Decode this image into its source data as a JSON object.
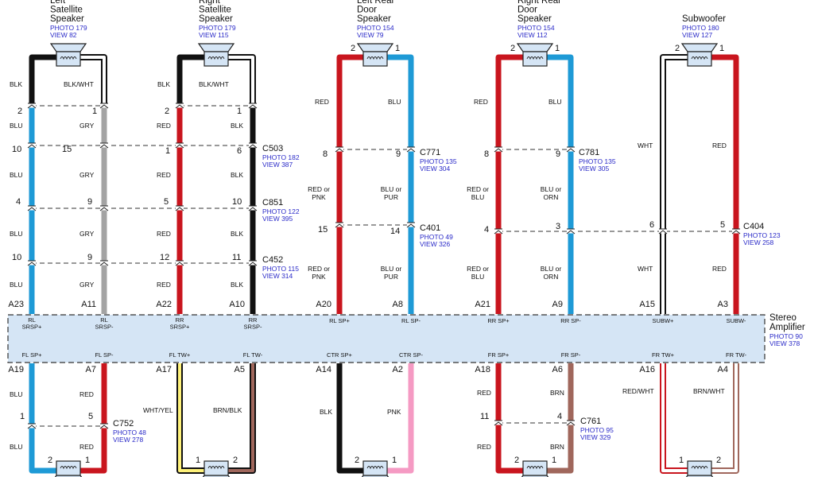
{
  "speakers_top": [
    {
      "name": [
        "Left",
        "Satellite",
        "Speaker"
      ],
      "photo": "PHOTO 179",
      "view": "VIEW 82"
    },
    {
      "name": [
        "Right",
        "Satellite",
        "Speaker"
      ],
      "photo": "PHOTO 179",
      "view": "VIEW 115"
    },
    {
      "name": [
        "Left Rear",
        "Door",
        "Speaker"
      ],
      "photo": "PHOTO 154",
      "view": "VIEW 79",
      "pins": [
        "2",
        "1"
      ]
    },
    {
      "name": [
        "Right Rear",
        "Door",
        "Speaker"
      ],
      "photo": "PHOTO 154",
      "view": "VIEW 112",
      "pins": [
        "2",
        "1"
      ]
    },
    {
      "name": [
        "Subwoofer"
      ],
      "photo": "PHOTO 180",
      "view": "VIEW 127",
      "pins": [
        "2",
        "1"
      ]
    }
  ],
  "speakers_bottom": [
    {
      "pins": [
        "2",
        "1"
      ]
    },
    {
      "pins": [
        "1",
        "2"
      ]
    },
    {
      "pins": [
        "2",
        "1"
      ]
    },
    {
      "pins": [
        "2",
        "1"
      ]
    },
    {
      "pins": [
        "1",
        "2"
      ]
    }
  ],
  "wire_labels": [
    "BLK",
    "BLK/WHT",
    "BLU",
    "GRY",
    "BLU",
    "GRY",
    "BLU",
    "GRY",
    "BLU",
    "GRY",
    "BLK",
    "BLK/WHT",
    "RED",
    "BLK",
    "RED",
    "BLK",
    "RED",
    "BLK",
    "RED",
    "BLK",
    "RED",
    "BLU",
    [
      "RED or",
      "PNK"
    ],
    [
      "BLU or",
      "PUR"
    ],
    [
      "RED or",
      "PNK"
    ],
    [
      "BLU or",
      "PUR"
    ],
    "RED",
    "BLU",
    [
      "RED or",
      "BLU"
    ],
    [
      "BLU or",
      "ORN"
    ],
    [
      "RED or",
      "BLU"
    ],
    [
      "BLU or",
      "ORN"
    ],
    "WHT",
    "RED",
    "WHT",
    "RED",
    "BLU",
    "RED",
    "BLU",
    "RED",
    "WHT/YEL",
    "BRN/BLK",
    "BLK",
    "PNK",
    "RED",
    "BRN",
    "RED",
    "BRN",
    "RED/WHT",
    "BRN/WHT"
  ],
  "pin_numbers": [
    "2",
    "1",
    "10",
    "15",
    "4",
    "9",
    "10",
    "9",
    "2",
    "1",
    "1",
    "6",
    "5",
    "10",
    "12",
    "11",
    "8",
    "9",
    "15",
    "14",
    "8",
    "9",
    "4",
    "3",
    "6",
    "5",
    "1",
    "5",
    "11",
    "4"
  ],
  "connectors": [
    {
      "name": "C503",
      "photo": "PHOTO 182",
      "view": "VIEW 387"
    },
    {
      "name": "C851",
      "photo": "PHOTO 122",
      "view": "VIEW 395"
    },
    {
      "name": "C452",
      "photo": "PHOTO 115",
      "view": "VIEW 314"
    },
    {
      "name": "C771",
      "photo": "PHOTO 135",
      "view": "VIEW 304"
    },
    {
      "name": "C401",
      "photo": "PHOTO 49",
      "view": "VIEW 326"
    },
    {
      "name": "C781",
      "photo": "PHOTO 135",
      "view": "VIEW 305"
    },
    {
      "name": "C404",
      "photo": "PHOTO 123",
      "view": "VIEW 258"
    },
    {
      "name": "C752",
      "photo": "PHOTO 48",
      "view": "VIEW 278"
    },
    {
      "name": "C761",
      "photo": "PHOTO 95",
      "view": "VIEW 329"
    }
  ],
  "amplifier": {
    "name": [
      "Stereo",
      "Amplifier"
    ],
    "photo": "PHOTO 90",
    "view": "VIEW 378",
    "top_pins": [
      {
        "pin": "A23",
        "function": [
          "RL",
          "SRSP+"
        ]
      },
      {
        "pin": "A11",
        "function": [
          "RL",
          "SRSP-"
        ]
      },
      {
        "pin": "A22",
        "function": [
          "RR",
          "SRSP+"
        ]
      },
      {
        "pin": "A10",
        "function": [
          "RR",
          "SRSP-"
        ]
      },
      {
        "pin": "A20",
        "function": "RL SP+"
      },
      {
        "pin": "A8",
        "function": "RL SP-"
      },
      {
        "pin": "A21",
        "function": "RR SP+"
      },
      {
        "pin": "A9",
        "function": "RR SP-"
      },
      {
        "pin": "A15",
        "function": "SUBW+"
      },
      {
        "pin": "A3",
        "function": "SUBW-"
      }
    ],
    "bottom_pins": [
      {
        "pin": "A19",
        "function": "FL SP+"
      },
      {
        "pin": "A7",
        "function": "FL SP-"
      },
      {
        "pin": "A17",
        "function": "FL TW+"
      },
      {
        "pin": "A5",
        "function": "FL TW-"
      },
      {
        "pin": "A14",
        "function": "CTR SP+"
      },
      {
        "pin": "A2",
        "function": "CTR SP-"
      },
      {
        "pin": "A18",
        "function": "FR SP+"
      },
      {
        "pin": "A6",
        "function": "FR SP-"
      },
      {
        "pin": "A16",
        "function": "FR TW+"
      },
      {
        "pin": "A4",
        "function": "FR TW-"
      }
    ]
  }
}
